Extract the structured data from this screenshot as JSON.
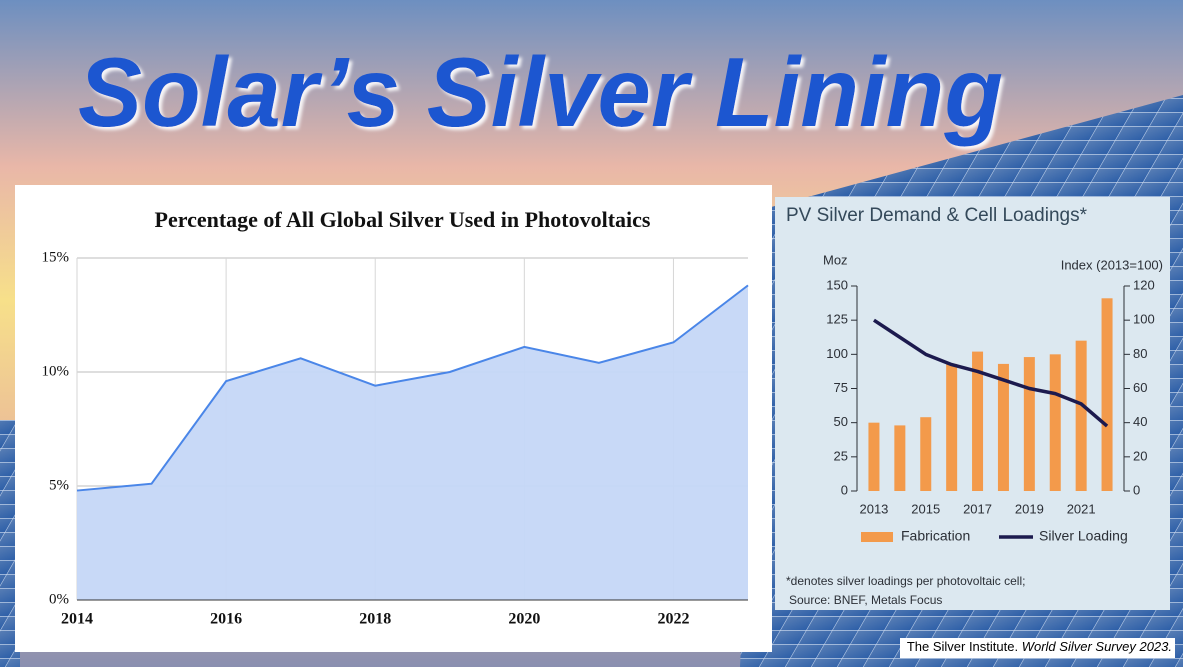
{
  "title": "Solar’s Silver Lining",
  "chart_data": [
    {
      "type": "area",
      "title": "Percentage of All Global Silver Used in Photovoltaics",
      "x": [
        2014,
        2015,
        2016,
        2017,
        2018,
        2019,
        2020,
        2021,
        2022,
        2023
      ],
      "values": [
        4.8,
        5.1,
        9.6,
        10.6,
        9.4,
        10.0,
        11.1,
        10.4,
        11.3,
        13.8
      ],
      "color": "#4a86e8",
      "fill": "#c5d7f7",
      "xlim": [
        2014,
        2023
      ],
      "xticks": [
        2014,
        2016,
        2018,
        2020,
        2022
      ],
      "ylim": [
        0,
        15
      ],
      "yticks": [
        {
          "value": 0,
          "label": "0%"
        },
        {
          "value": 5,
          "label": "5%"
        },
        {
          "value": 10,
          "label": "10%"
        },
        {
          "value": 15,
          "label": "15%"
        }
      ],
      "grid": true
    },
    {
      "type": "bar",
      "title": "PV Silver Demand & Cell Loadings*",
      "ylabel": "Moz",
      "y2label": "Index (2013=100)",
      "x": [
        2013,
        2014,
        2015,
        2016,
        2017,
        2018,
        2019,
        2020,
        2021,
        2022
      ],
      "series": [
        {
          "name": "Fabrication",
          "type": "bar",
          "color": "#f39a4b",
          "values": [
            50,
            48,
            54,
            93,
            102,
            93,
            98,
            100,
            110,
            141
          ]
        },
        {
          "name": "Silver Loading",
          "type": "line",
          "axis": "y2",
          "color": "#1c1a4e",
          "values": [
            100,
            90,
            80,
            74,
            70,
            65,
            60,
            57,
            51,
            38
          ]
        }
      ],
      "xlim": [
        2012.5,
        2022.5
      ],
      "xticks": [
        2013,
        2015,
        2017,
        2019,
        2021
      ],
      "ylim": [
        0,
        150
      ],
      "yticks": [
        0,
        25,
        50,
        75,
        100,
        125,
        150
      ],
      "y2lim": [
        0,
        120
      ],
      "y2ticks": [
        0,
        20,
        40,
        60,
        80,
        100,
        120
      ],
      "notes": [
        "*denotes silver loadings per photovoltaic cell;",
        "Source: BNEF, Metals Focus"
      ]
    }
  ],
  "credit": {
    "org": "The Silver Institute.",
    "publication": "World Silver Survey 2023."
  }
}
